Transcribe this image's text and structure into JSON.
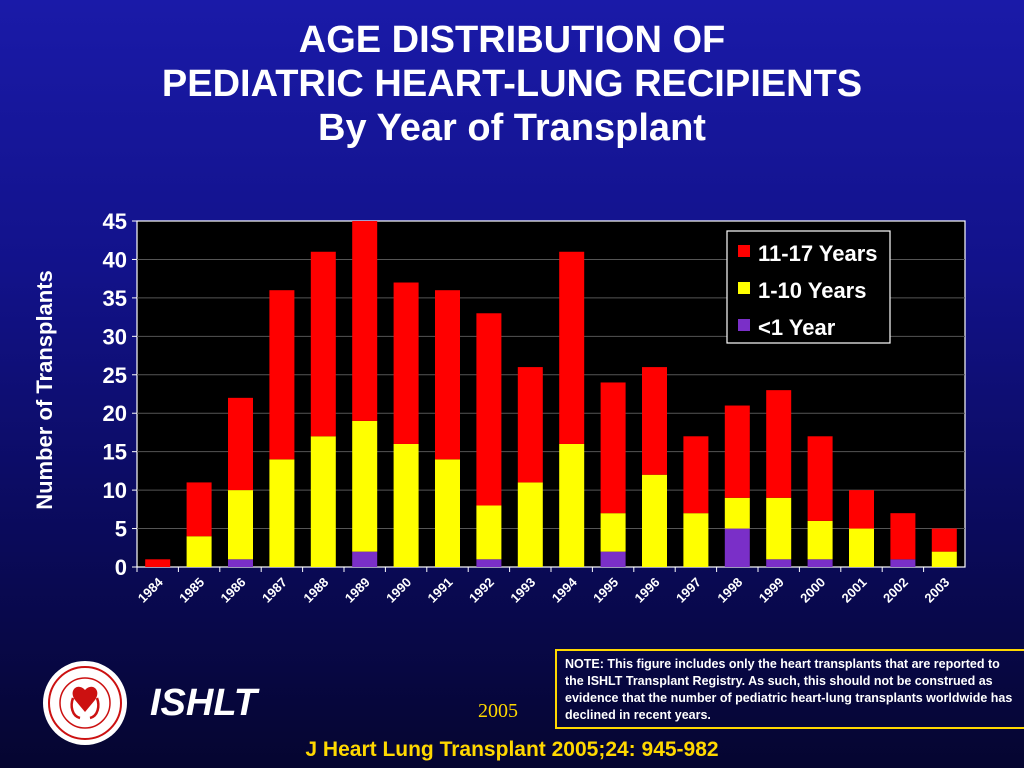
{
  "title": {
    "line1": "AGE DISTRIBUTION OF",
    "line2": "PEDIATRIC HEART-LUNG RECIPIENTS",
    "line3": "By Year of Transplant"
  },
  "chart_data": {
    "type": "bar",
    "stacked": true,
    "categories": [
      "1984",
      "1985",
      "1986",
      "1987",
      "1988",
      "1989",
      "1990",
      "1991",
      "1992",
      "1993",
      "1994",
      "1995",
      "1996",
      "1997",
      "1998",
      "1999",
      "2000",
      "2001",
      "2002",
      "2003"
    ],
    "series": [
      {
        "name": "<1 Year",
        "color": "#7a2fc8",
        "values": [
          0,
          0,
          1,
          0,
          0,
          2,
          0,
          0,
          1,
          0,
          0,
          2,
          0,
          0,
          5,
          1,
          1,
          0,
          1,
          0
        ]
      },
      {
        "name": "1-10 Years",
        "color": "#ffff00",
        "values": [
          0,
          4,
          9,
          14,
          17,
          17,
          16,
          14,
          7,
          11,
          16,
          5,
          12,
          7,
          4,
          8,
          5,
          5,
          0,
          2
        ]
      },
      {
        "name": "11-17 Years",
        "color": "#ff0000",
        "values": [
          1,
          7,
          12,
          22,
          24,
          26,
          21,
          22,
          25,
          15,
          25,
          17,
          14,
          10,
          12,
          14,
          11,
          5,
          6,
          3
        ]
      }
    ],
    "legend_order": [
      "11-17 Years",
      "1-10 Years",
      "<1 Year"
    ],
    "ylabel": "Number of Transplants",
    "xlabel": "",
    "ylim": [
      0,
      45
    ],
    "yticks": [
      0,
      5,
      10,
      15,
      20,
      25,
      30,
      35,
      40,
      45
    ],
    "grid": true,
    "legend_position": "top-right"
  },
  "colors": {
    "plot_background": "#000000",
    "axis_text": "#ffffff",
    "note_border": "#ffd800",
    "citation": "#ffd800"
  },
  "footer": {
    "logo_icon": "ishlt-seal-icon",
    "org": "ISHLT",
    "year": "2005",
    "note": "NOTE: This figure includes only the heart transplants that are reported to the ISHLT Transplant Registry.  As such, this should not be construed as evidence that the number of pediatric heart-lung transplants worldwide has declined in recent years.",
    "citation": "J Heart Lung Transplant 2005;24: 945-982"
  }
}
